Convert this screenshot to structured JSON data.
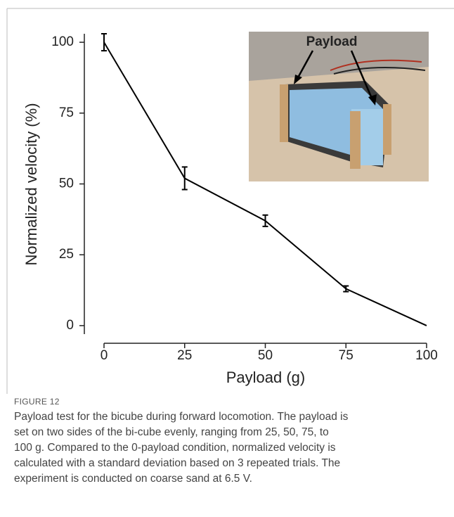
{
  "chart_data": {
    "type": "line",
    "xlabel": "Payload (g)",
    "ylabel": "Normalized velocity (%)",
    "inset_label": "Payload",
    "x": [
      0,
      25,
      50,
      75,
      100
    ],
    "series": [
      {
        "color": "#000000",
        "values": [
          100,
          52,
          37,
          13,
          0
        ],
        "errors": [
          3,
          4,
          2,
          1,
          null
        ]
      }
    ],
    "xlim": [
      0,
      100
    ],
    "xticks": [
      0,
      25,
      50,
      75,
      100
    ],
    "ylim": [
      -3,
      103
    ],
    "yticks": [
      0,
      25,
      50,
      75,
      100
    ]
  },
  "caption": {
    "label": "FIGURE 12",
    "lines": [
      "Payload test for the bicube during forward locomotion. The payload is",
      "set on two sides of the bi-cube evenly, ranging from 25, 50, 75, to",
      "100 g. Compared to the 0-payload condition, normalized velocity is",
      "calculated with a standard deviation based on 3 repeated trials. The",
      "experiment is conducted on coarse sand at 6.5 V."
    ]
  }
}
